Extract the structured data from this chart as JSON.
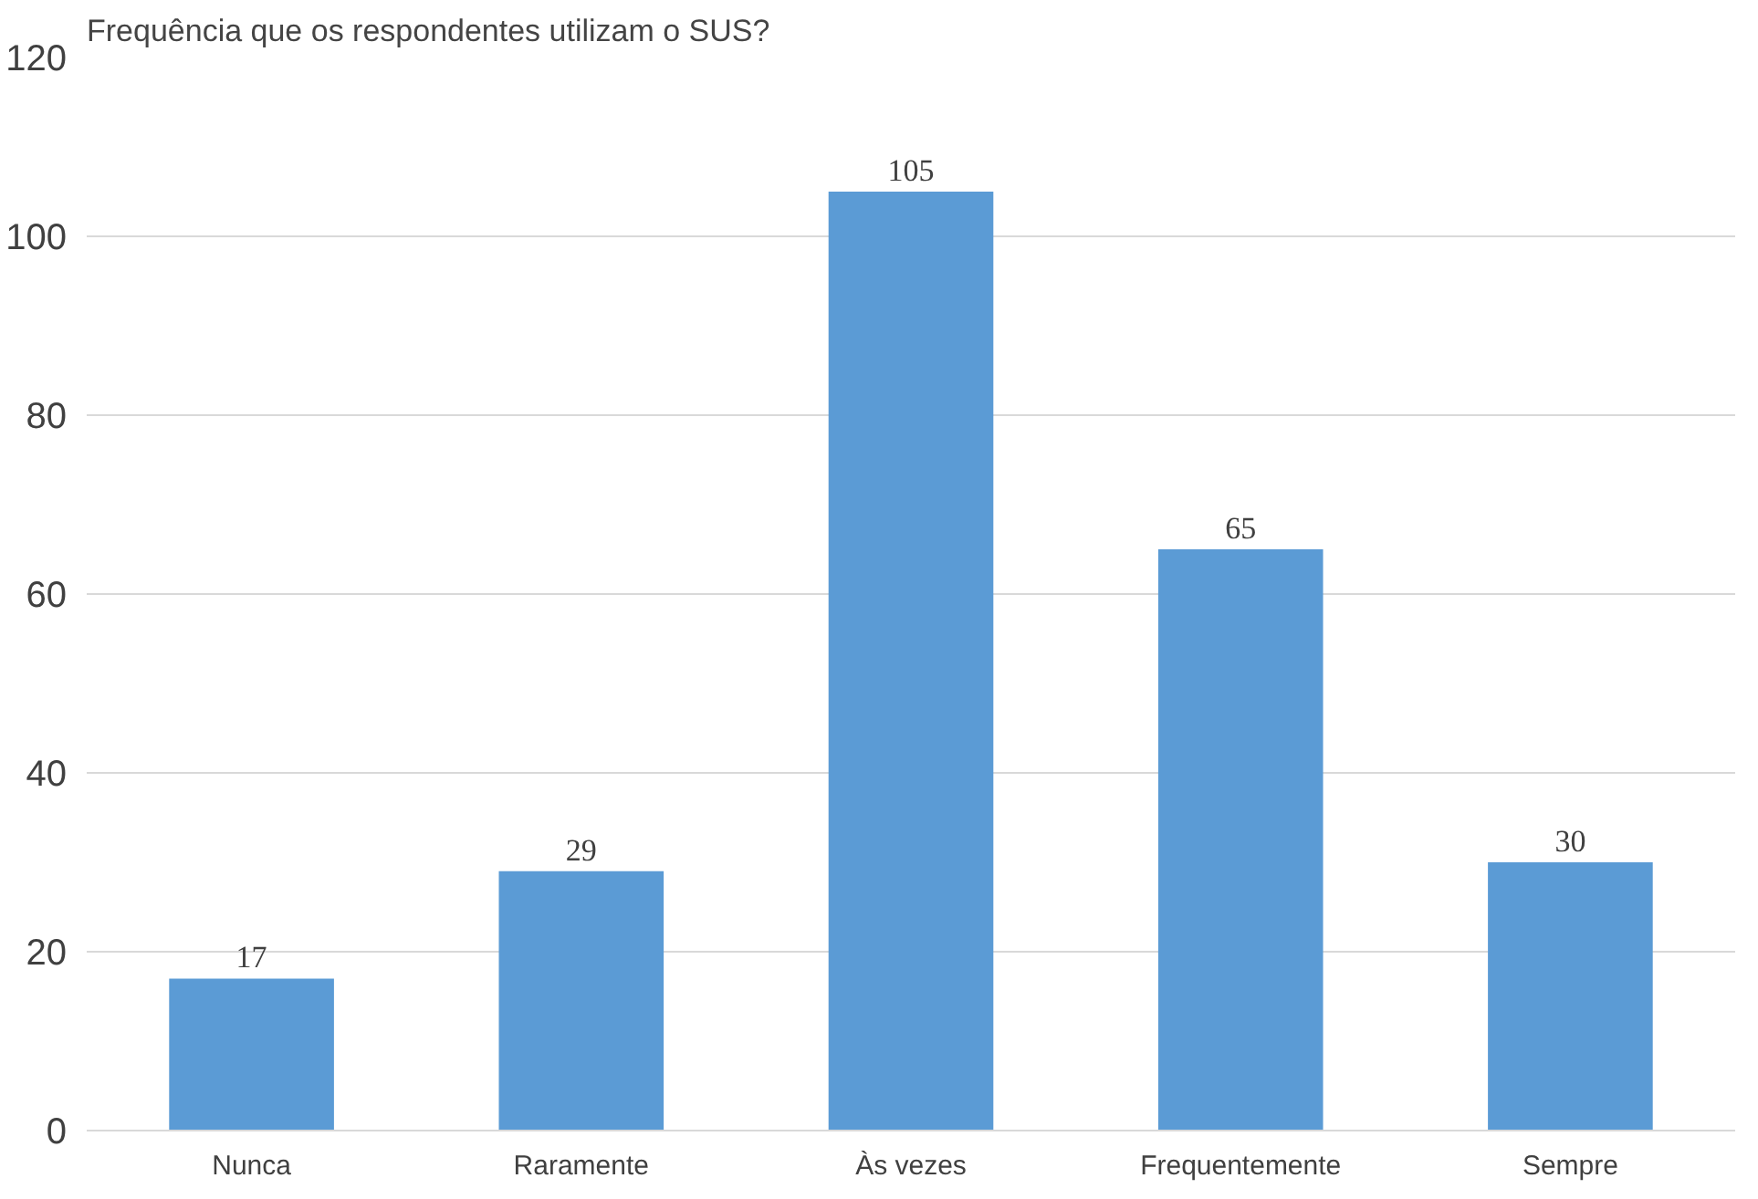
{
  "chart_data": {
    "type": "bar",
    "title": "Frequência que os respondentes utilizam o SUS?",
    "categories": [
      "Nunca",
      "Raramente",
      "Às vezes",
      "Frequentemente",
      "Sempre"
    ],
    "values": [
      17,
      29,
      105,
      65,
      30
    ],
    "color": "#5b9bd5",
    "ylim": [
      0,
      120
    ],
    "yticks": [
      0,
      20,
      40,
      60,
      80,
      100,
      120
    ],
    "grid": "y",
    "data_labels": true
  }
}
